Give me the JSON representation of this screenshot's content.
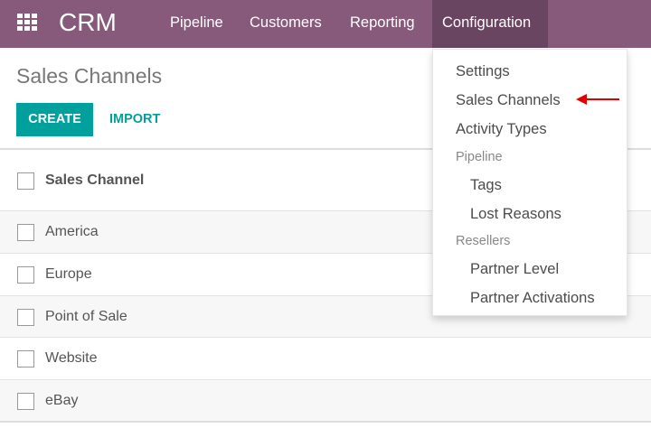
{
  "navbar": {
    "app_name": "CRM",
    "menus": [
      "Pipeline",
      "Customers",
      "Reporting",
      "Configuration"
    ],
    "active": "Configuration",
    "color": "#875A7B"
  },
  "page": {
    "title": "Sales Channels",
    "create_label": "CREATE",
    "import_label": "IMPORT",
    "accent": "#00A09D"
  },
  "table": {
    "column": "Sales Channel",
    "rows": [
      "America",
      "Europe",
      "Point of Sale",
      "Website",
      "eBay"
    ]
  },
  "dropdown": {
    "items": [
      "Settings",
      "Sales Channels",
      "Activity Types"
    ],
    "pipeline_header": "Pipeline",
    "pipeline_items": [
      "Tags",
      "Lost Reasons"
    ],
    "resellers_header": "Resellers",
    "resellers_items": [
      "Partner Level",
      "Partner Activations"
    ]
  },
  "annotation": {
    "arrow_color": "#e00000",
    "points_to": "Sales Channels"
  }
}
